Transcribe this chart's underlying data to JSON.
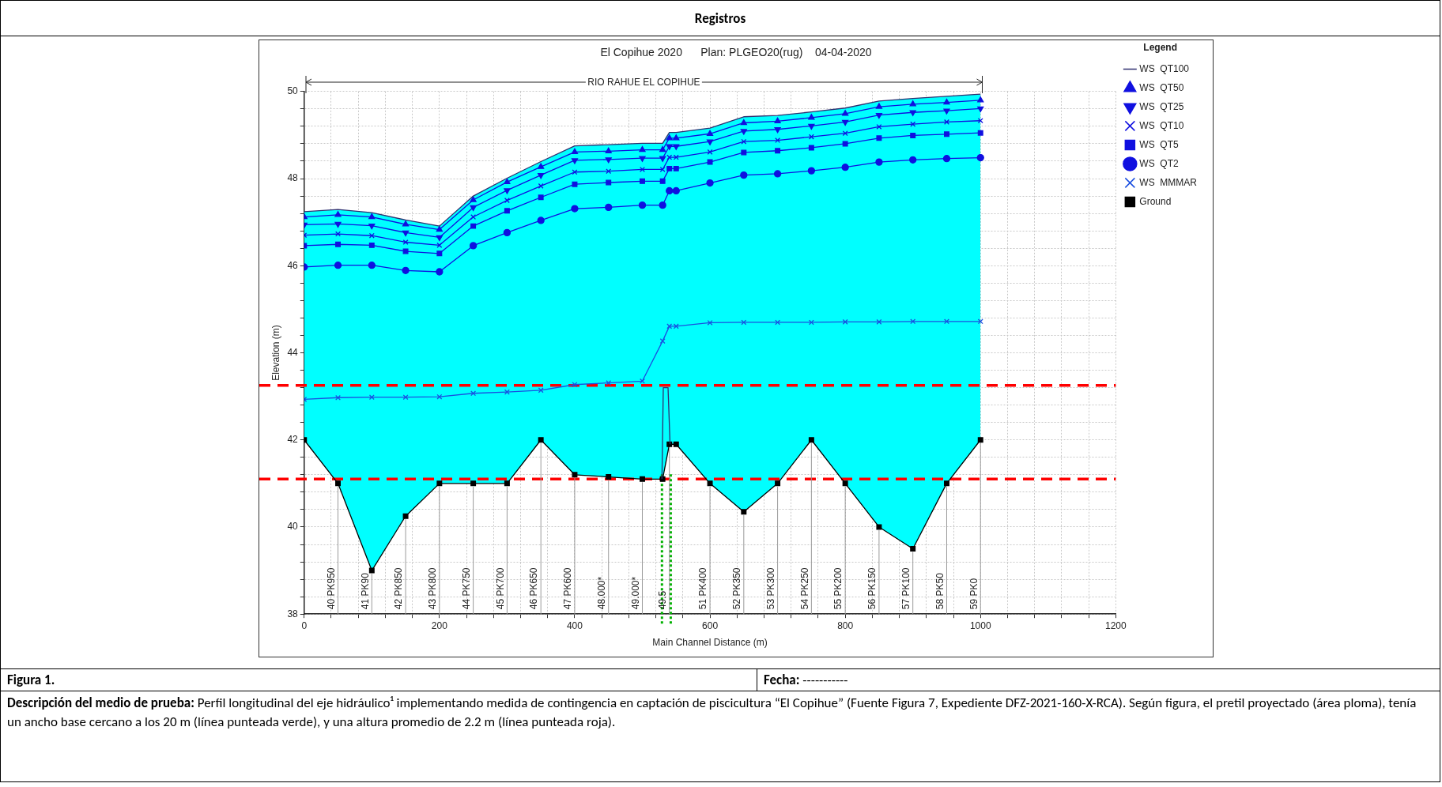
{
  "chart_data": {
    "type": "line",
    "title": "El Copihue 2020      Plan: PLGEO20(rug)    04-04-2020",
    "xlabel": "Main Channel Distance (m)",
    "ylabel": "Elevation (m)",
    "legend_title": "Legend",
    "legend": "top right",
    "grid": true,
    "x": [
      0,
      50,
      100,
      150,
      200,
      250,
      300,
      350,
      400,
      450,
      500,
      530,
      540,
      550,
      600,
      650,
      700,
      750,
      800,
      850,
      900,
      950,
      1000
    ],
    "xlim": [
      0,
      1200
    ],
    "xticks": [
      0,
      {
        "value": 40,
        "label": null
      },
      {
        "value": 80,
        "label": null
      },
      {
        "value": 120,
        "label": null
      },
      {
        "value": 160,
        "label": null
      },
      200,
      {
        "value": 240,
        "label": null
      },
      {
        "value": 280,
        "label": null
      },
      {
        "value": 320,
        "label": null
      },
      {
        "value": 360,
        "label": null
      },
      400,
      {
        "value": 440,
        "label": null
      },
      {
        "value": 480,
        "label": null
      },
      {
        "value": 520,
        "label": null
      },
      {
        "value": 560,
        "label": null
      },
      600,
      {
        "value": 640,
        "label": null
      },
      {
        "value": 680,
        "label": null
      },
      {
        "value": 720,
        "label": null
      },
      {
        "value": 760,
        "label": null
      },
      800,
      {
        "value": 840,
        "label": null
      },
      {
        "value": 880,
        "label": null
      },
      {
        "value": 920,
        "label": null
      },
      {
        "value": 960,
        "label": null
      },
      1000,
      {
        "value": 1040,
        "label": null
      },
      {
        "value": 1080,
        "label": null
      },
      {
        "value": 1120,
        "label": null
      },
      {
        "value": 1160,
        "label": null
      },
      1200
    ],
    "ylim": [
      38,
      50
    ],
    "yticks": [
      38,
      {
        "value": 38.4,
        "label": null
      },
      {
        "value": 38.8,
        "label": null
      },
      {
        "value": 39.2,
        "label": null
      },
      {
        "value": 39.6,
        "label": null
      },
      40,
      {
        "value": 40.4,
        "label": null
      },
      {
        "value": 40.8,
        "label": null
      },
      {
        "value": 41.2,
        "label": null
      },
      {
        "value": 41.6,
        "label": null
      },
      42,
      {
        "value": 42.4,
        "label": null
      },
      {
        "value": 42.8,
        "label": null
      },
      {
        "value": 43.2,
        "label": null
      },
      {
        "value": 43.6,
        "label": null
      },
      44,
      {
        "value": 44.4,
        "label": null
      },
      {
        "value": 44.8,
        "label": null
      },
      {
        "value": 45.2,
        "label": null
      },
      {
        "value": 45.6,
        "label": null
      },
      46,
      {
        "value": 46.4,
        "label": null
      },
      {
        "value": 46.8,
        "label": null
      },
      {
        "value": 47.2,
        "label": null
      },
      {
        "value": 47.6,
        "label": null
      },
      48,
      {
        "value": 48.4,
        "label": null
      },
      {
        "value": 48.8,
        "label": null
      },
      {
        "value": 49.2,
        "label": null
      },
      {
        "value": 49.6,
        "label": null
      },
      50
    ],
    "series": [
      {
        "name": "WS  QT100",
        "type": "area",
        "color": "#00ffff",
        "marker": "none",
        "values": [
          47.24,
          47.29,
          47.22,
          47.05,
          46.91,
          47.6,
          48.01,
          48.39,
          48.75,
          48.78,
          48.81,
          48.81,
          49.06,
          49.06,
          49.16,
          49.42,
          49.45,
          49.53,
          49.62,
          49.78,
          49.84,
          49.89,
          49.94
        ]
      },
      {
        "name": "WS  QT50",
        "color": "#1010e0",
        "marker": "triangle",
        "values": [
          47.12,
          47.17,
          47.12,
          46.95,
          46.83,
          47.51,
          47.92,
          48.27,
          48.61,
          48.63,
          48.66,
          48.66,
          48.93,
          48.93,
          49.03,
          49.28,
          49.32,
          49.4,
          49.49,
          49.65,
          49.71,
          49.75,
          49.8
        ]
      },
      {
        "name": "WS  QT25",
        "color": "#1010e0",
        "marker": "triangle-down",
        "values": [
          46.94,
          46.96,
          46.92,
          46.76,
          46.65,
          47.34,
          47.73,
          48.08,
          48.42,
          48.44,
          48.47,
          48.47,
          48.74,
          48.74,
          48.85,
          49.09,
          49.13,
          49.21,
          49.3,
          49.46,
          49.52,
          49.56,
          49.61
        ]
      },
      {
        "name": "WS  QT10",
        "color": "#1010e0",
        "marker": "cross",
        "values": [
          46.7,
          46.73,
          46.69,
          46.54,
          46.47,
          47.12,
          47.5,
          47.83,
          48.15,
          48.17,
          48.21,
          48.21,
          48.49,
          48.49,
          48.61,
          48.85,
          48.88,
          48.96,
          49.04,
          49.19,
          49.25,
          49.3,
          49.33
        ]
      },
      {
        "name": "WS  QT5",
        "color": "#1010e0",
        "marker": "square",
        "values": [
          46.46,
          46.49,
          46.47,
          46.33,
          46.28,
          46.91,
          47.26,
          47.57,
          47.87,
          47.91,
          47.94,
          47.94,
          48.23,
          48.23,
          48.38,
          48.6,
          48.64,
          48.71,
          48.8,
          48.93,
          48.99,
          49.02,
          49.05
        ]
      },
      {
        "name": "WS  QT2",
        "color": "#1010e0",
        "marker": "circle",
        "values": [
          45.97,
          46.01,
          46.01,
          45.89,
          45.86,
          46.46,
          46.76,
          47.04,
          47.31,
          47.34,
          47.39,
          47.39,
          47.72,
          47.72,
          47.9,
          48.08,
          48.11,
          48.18,
          48.26,
          48.38,
          48.43,
          48.46,
          48.48
        ]
      },
      {
        "name": "WS  MMMAR",
        "color": "#1a4fe0",
        "marker": "cross",
        "values": [
          42.93,
          42.97,
          42.98,
          42.98,
          42.99,
          43.07,
          43.1,
          43.14,
          43.27,
          43.31,
          43.35,
          44.27,
          44.61,
          44.61,
          44.69,
          44.7,
          44.7,
          44.7,
          44.71,
          44.71,
          44.72,
          44.72,
          44.72
        ]
      },
      {
        "type": "area",
        "color": "#c0c0c0",
        "marker": "none",
        "x": [
          529,
          531,
          538,
          541
        ],
        "values": [
          41.1,
          43.2,
          43.2,
          41.9
        ]
      },
      {
        "name": "Ground",
        "color": "#000000",
        "marker": "square",
        "values": [
          42.0,
          41.0,
          39.0,
          40.25,
          41.0,
          41.0,
          41.0,
          42.0,
          41.2,
          41.15,
          41.1,
          41.1,
          41.9,
          41.9,
          41.0,
          40.35,
          41.0,
          42.0,
          41.0,
          40.0,
          39.5,
          41.0,
          42.0
        ]
      }
    ],
    "ref_lines": [
      {
        "axis": "y",
        "value": 43.25,
        "color": "#ff0000",
        "line_style": "dashed"
      },
      {
        "axis": "y",
        "value": 41.1,
        "color": "#ff0000",
        "line_style": "dashed"
      },
      {
        "axis": "x",
        "value": 529,
        "color": "#00b000",
        "line_style": "dotted"
      },
      {
        "axis": "x",
        "value": 542,
        "color": "#00b000",
        "line_style": "dotted"
      }
    ],
    "annotations": [
      "Registros",
      "Figura 1.",
      "Fecha: -----------",
      "Descripción del medio de prueba: Perfil longitudinal del eje hidráulico¹ implementando medida de contingencia en captación de piscicultura “El Copihue” (Fuente Figura 7, Expediente DFZ-2021-160-X-RCA). Según figura, el pretil proyectado (área ploma), tenía un ancho base cercano a los 20 m (línea punteada verde), y una altura promedio de 2.2 m (línea punteada roja).",
      "RIO RAHUE EL COPIHUE",
      {
        "text": "40 PK950",
        "x": 50,
        "y": 41.0
      },
      {
        "text": "41 PK90",
        "x": 100,
        "y": 39.0
      },
      {
        "text": "42 PK850",
        "x": 150,
        "y": 40.25
      },
      {
        "text": "43 PK800",
        "x": 200,
        "y": 41.0
      },
      {
        "text": "44 PK750",
        "x": 250,
        "y": 41.0
      },
      {
        "text": "45 PK700",
        "x": 300,
        "y": 41.0
      },
      {
        "text": "46 PK650",
        "x": 350,
        "y": 42.0
      },
      {
        "text": "47 PK600",
        "x": 400,
        "y": 41.2
      },
      {
        "text": "48.000*",
        "x": 450,
        "y": 41.15
      },
      {
        "text": "49.000*",
        "x": 500,
        "y": 41.1
      },
      {
        "text": "49.5",
        "x": 540,
        "y": 41.9
      },
      {
        "text": "51 PK400",
        "x": 600,
        "y": 41.0
      },
      {
        "text": "52 PK350",
        "x": 650,
        "y": 40.35
      },
      {
        "text": "53 PK300",
        "x": 700,
        "y": 41.0
      },
      {
        "text": "54 PK250",
        "x": 750,
        "y": 42.0
      },
      {
        "text": "55 PK200",
        "x": 800,
        "y": 41.0
      },
      {
        "text": "56 PK150",
        "x": 850,
        "y": 40.0
      },
      {
        "text": "57 PK100",
        "x": 900,
        "y": 39.5
      },
      {
        "text": "58 PK50",
        "x": 950,
        "y": 41.0
      },
      {
        "text": "59 PK0",
        "x": 1000,
        "y": 42.0
      }
    ]
  }
}
